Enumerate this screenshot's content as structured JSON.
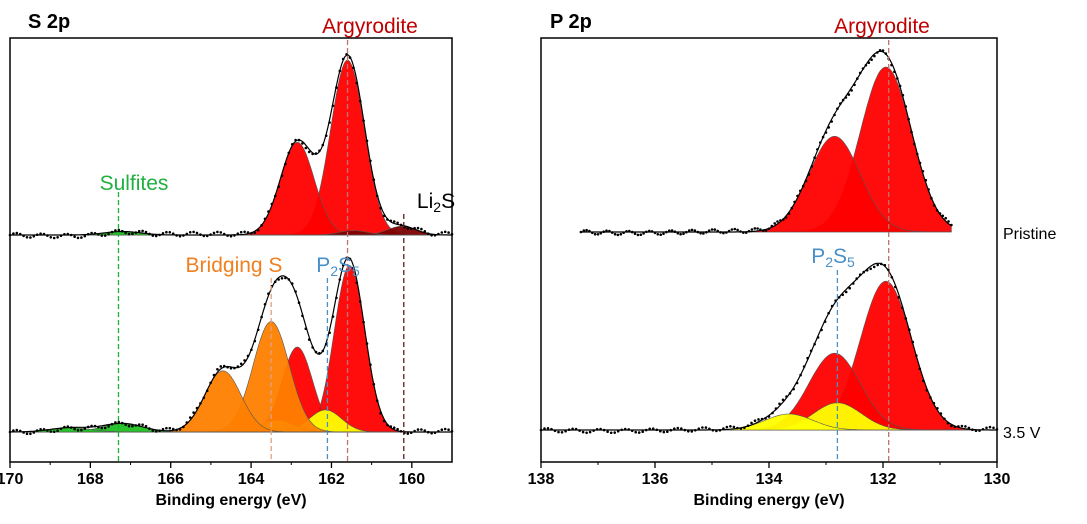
{
  "chart_data": [
    {
      "type": "area",
      "title": "S 2p",
      "xlabel": "Binding energy (eV)",
      "xlim": [
        170,
        159
      ],
      "x_reversed": true,
      "xticks": [
        "170",
        "168",
        "166",
        "164",
        "162",
        "160"
      ],
      "xtick_values": [
        170,
        168,
        166,
        164,
        162,
        160
      ],
      "grid": false,
      "annotations": [
        {
          "id": "argyrodite",
          "text": "Argyrodite",
          "color": "#c00000"
        },
        {
          "id": "sulfites",
          "text": "Sulfites",
          "color": "#20b040"
        },
        {
          "id": "li2s",
          "text": "Li",
          "sub": "2",
          "text2": "S",
          "color": "#000000"
        },
        {
          "id": "bridging",
          "text": "Bridging S",
          "color": "#f08020"
        },
        {
          "id": "p2s5",
          "text": "P",
          "sub": "2",
          "text2": "S",
          "sub2": "5",
          "color": "#4a90c8"
        }
      ],
      "reference_lines": [
        {
          "x": 161.6,
          "color": "#c07070",
          "label": "Argyrodite"
        },
        {
          "x": 167.3,
          "color": "#20b040",
          "label": "Sulfites"
        },
        {
          "x": 160.2,
          "color": "#5a1a1a",
          "label": "Li2S"
        },
        {
          "x": 163.5,
          "color": "#e0a080",
          "label": "Bridging S"
        },
        {
          "x": 162.1,
          "color": "#4a90c8",
          "label": "P2S5"
        }
      ],
      "spectra": [
        {
          "label": "Pristine",
          "components": [
            {
              "name": "Argyrodite 2p3/2",
              "center": 161.6,
              "height": 1.0,
              "sigma": 0.42,
              "color": "#ff0000"
            },
            {
              "name": "Argyrodite 2p1/2",
              "center": 162.85,
              "height": 0.53,
              "sigma": 0.42,
              "color": "#ff0000"
            },
            {
              "name": "Li2S 2p3/2",
              "center": 160.25,
              "height": 0.05,
              "sigma": 0.35,
              "color": "#800000"
            },
            {
              "name": "Li2S 2p1/2",
              "center": 161.45,
              "height": 0.025,
              "sigma": 0.35,
              "color": "#800000"
            },
            {
              "name": "Sulfites",
              "center": 167.2,
              "height": 0.02,
              "sigma": 0.45,
              "color": "#20c020"
            }
          ]
        },
        {
          "label": "3.5 V",
          "components": [
            {
              "name": "Argyrodite 2p3/2",
              "center": 161.55,
              "height": 0.98,
              "sigma": 0.38,
              "color": "#ff0000"
            },
            {
              "name": "Argyrodite 2p1/2",
              "center": 162.85,
              "height": 0.5,
              "sigma": 0.38,
              "color": "#ff0000"
            },
            {
              "name": "P2S5 2p3/2",
              "center": 162.15,
              "height": 0.13,
              "sigma": 0.4,
              "color": "#ffff00"
            },
            {
              "name": "P2S5 2p1/2",
              "center": 163.35,
              "height": 0.07,
              "sigma": 0.4,
              "color": "#ffff00"
            },
            {
              "name": "Bridging S 2p3/2",
              "center": 163.5,
              "height": 0.65,
              "sigma": 0.45,
              "color": "#ff8000"
            },
            {
              "name": "Bridging S 2p1/2",
              "center": 164.7,
              "height": 0.36,
              "sigma": 0.45,
              "color": "#ff8000"
            },
            {
              "name": "Sulfites",
              "center": 167.2,
              "height": 0.05,
              "sigma": 0.5,
              "color": "#20c020"
            },
            {
              "name": "Sulfites 2",
              "center": 168.5,
              "height": 0.025,
              "sigma": 0.5,
              "color": "#20c020"
            }
          ]
        }
      ]
    },
    {
      "type": "area",
      "title": "P 2p",
      "xlabel": "Binding energy (eV)",
      "xlim": [
        138,
        130
      ],
      "x_reversed": true,
      "xticks": [
        "138",
        "136",
        "134",
        "132",
        "130"
      ],
      "xtick_values": [
        138,
        136,
        134,
        132,
        130
      ],
      "grid": false,
      "annotations": [
        {
          "id": "argyrodite",
          "text": "Argyrodite",
          "color": "#c00000"
        },
        {
          "id": "p2s5",
          "text": "P",
          "sub": "2",
          "text2": "S",
          "sub2": "5",
          "color": "#4a90c8"
        }
      ],
      "reference_lines": [
        {
          "x": 131.9,
          "color": "#c07070",
          "label": "Argyrodite"
        },
        {
          "x": 132.8,
          "color": "#4a90c8",
          "label": "P2S5"
        }
      ],
      "spectra": [
        {
          "label": "Pristine",
          "components": [
            {
              "name": "Argyrodite 2p3/2",
              "center": 131.95,
              "height": 1.0,
              "sigma": 0.45,
              "color": "#ff0000"
            },
            {
              "name": "Argyrodite 2p1/2",
              "center": 132.85,
              "height": 0.58,
              "sigma": 0.45,
              "color": "#ff0000"
            }
          ]
        },
        {
          "label": "3.5 V",
          "components": [
            {
              "name": "Argyrodite 2p3/2",
              "center": 131.95,
              "height": 0.93,
              "sigma": 0.45,
              "color": "#ff0000"
            },
            {
              "name": "Argyrodite 2p1/2",
              "center": 132.85,
              "height": 0.48,
              "sigma": 0.45,
              "color": "#ff0000"
            },
            {
              "name": "P2S5 2p3/2",
              "center": 132.8,
              "height": 0.17,
              "sigma": 0.42,
              "color": "#ffff00"
            },
            {
              "name": "P2S5 2p1/2",
              "center": 133.65,
              "height": 0.1,
              "sigma": 0.42,
              "color": "#ffff00"
            }
          ]
        }
      ]
    }
  ]
}
